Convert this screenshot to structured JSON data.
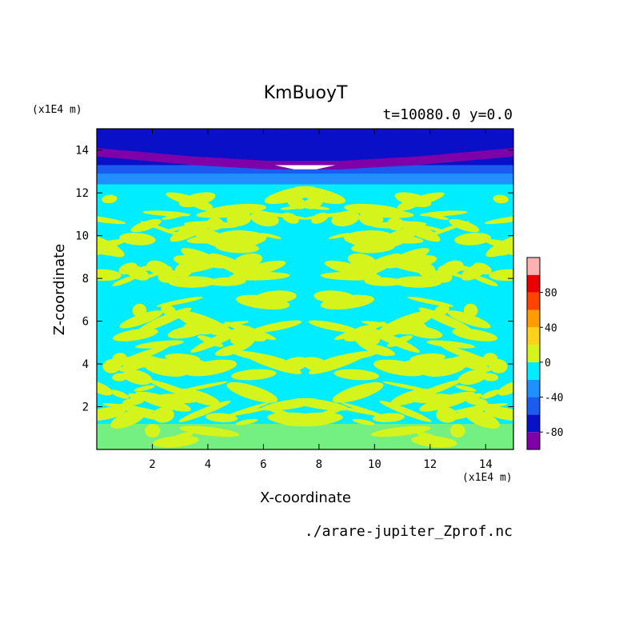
{
  "chart_data": {
    "type": "heatmap",
    "title": "KmBuoyT",
    "subtitle": "t=10080.0 y=0.0",
    "xlabel": "X-coordinate",
    "ylabel": "Z-coordinate",
    "x_unit": "(x1E4 m)",
    "y_unit": "(x1E4 m)",
    "xlim": [
      0.0,
      15.0
    ],
    "ylim": [
      0.0,
      15.0
    ],
    "x_ticks": [
      2,
      4,
      6,
      8,
      10,
      12,
      14
    ],
    "y_ticks": [
      2,
      4,
      6,
      8,
      10,
      12,
      14
    ],
    "x_tick_labels": [
      "2",
      "4",
      "6",
      "8",
      "10",
      "12",
      "14"
    ],
    "y_tick_labels": [
      "2",
      "4",
      "6",
      "8",
      "10",
      "12",
      "14"
    ],
    "source_file": "./arare-jupiter_Zprof.nc",
    "colorbar": {
      "levels": [
        -100,
        -80,
        -60,
        -40,
        -20,
        0,
        20,
        40,
        60,
        80,
        100
      ],
      "tick_values": [
        80,
        40,
        0,
        -40,
        -80
      ],
      "tick_labels": [
        "80",
        "40",
        "0",
        "-40",
        "-80"
      ],
      "colors": [
        "#7f00a8",
        "#0a10c8",
        "#1a5cf0",
        "#1e90ff",
        "#00ecff",
        "#d4f41c",
        "#ffd21a",
        "#ff9c00",
        "#ff4400",
        "#ea0000"
      ],
      "top_color": "#ffb0b0"
    },
    "field_description_levels": {
      "background": 0,
      "stable_top_band": [
        -100,
        -60
      ],
      "mid_layer_values": [
        -20,
        20
      ]
    }
  }
}
